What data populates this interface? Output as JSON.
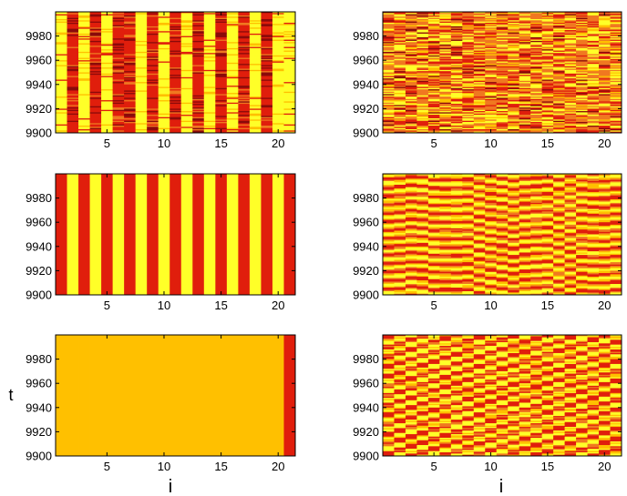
{
  "figure": {
    "xlabel": "i",
    "ylabel": "t"
  },
  "colormap": {
    "dark": "#8a0a0a",
    "red": "#e01e0c",
    "orange": "#f07820",
    "amber": "#ffc000",
    "yellow": "#ffff28"
  },
  "chart_data": [
    {
      "type": "heatmap",
      "panel": "top-left",
      "pattern": "alternating-columns-noisy",
      "x": [
        1,
        2,
        3,
        4,
        5,
        6,
        7,
        8,
        9,
        10,
        11,
        12,
        13,
        14,
        15,
        16,
        17,
        18,
        19,
        20,
        21
      ],
      "xticks": [
        5,
        10,
        15,
        20
      ],
      "xlim": [
        0.5,
        21.5
      ],
      "yticks": [
        9900,
        9920,
        9940,
        9960,
        9980
      ],
      "ylim": [
        9900,
        10000
      ],
      "column_state": [
        "yellow",
        "red",
        "yellow",
        "red",
        "yellow",
        "red",
        "red",
        "yellow",
        "red",
        "yellow",
        "red",
        "yellow",
        "red",
        "yellow",
        "red",
        "yellow",
        "red",
        "yellow",
        "red",
        "yellow",
        "yellow"
      ]
    },
    {
      "type": "heatmap",
      "panel": "top-right",
      "pattern": "noisy-orange",
      "x": [
        1,
        2,
        3,
        4,
        5,
        6,
        7,
        8,
        9,
        10,
        11,
        12,
        13,
        14,
        15,
        16,
        17,
        18,
        19,
        20,
        21
      ],
      "xticks": [
        5,
        10,
        15,
        20
      ],
      "xlim": [
        0.5,
        21.5
      ],
      "yticks": [
        9900,
        9920,
        9940,
        9960,
        9980
      ],
      "ylim": [
        9900,
        10000
      ]
    },
    {
      "type": "heatmap",
      "panel": "middle-left",
      "pattern": "alternating-columns",
      "x": [
        1,
        2,
        3,
        4,
        5,
        6,
        7,
        8,
        9,
        10,
        11,
        12,
        13,
        14,
        15,
        16,
        17,
        18,
        19,
        20,
        21
      ],
      "xticks": [
        5,
        10,
        15,
        20
      ],
      "xlim": [
        0.5,
        21.5
      ],
      "yticks": [
        9900,
        9920,
        9940,
        9960,
        9980
      ],
      "ylim": [
        9900,
        10000
      ],
      "column_state": [
        "red",
        "yellow",
        "red",
        "yellow",
        "red",
        "yellow",
        "red",
        "yellow",
        "red",
        "yellow",
        "red",
        "yellow",
        "red",
        "yellow",
        "red",
        "yellow",
        "red",
        "yellow",
        "red",
        "yellow",
        "red"
      ]
    },
    {
      "type": "heatmap",
      "panel": "middle-right",
      "pattern": "wavy-bands",
      "x": [
        1,
        2,
        3,
        4,
        5,
        6,
        7,
        8,
        9,
        10,
        11,
        12,
        13,
        14,
        15,
        16,
        17,
        18,
        19,
        20,
        21
      ],
      "xticks": [
        5,
        10,
        15,
        20
      ],
      "xlim": [
        0.5,
        21.5
      ],
      "yticks": [
        9900,
        9920,
        9940,
        9960,
        9980
      ],
      "ylim": [
        9900,
        10000
      ]
    },
    {
      "type": "heatmap",
      "panel": "bottom-left",
      "pattern": "uniform",
      "x": [
        1,
        2,
        3,
        4,
        5,
        6,
        7,
        8,
        9,
        10,
        11,
        12,
        13,
        14,
        15,
        16,
        17,
        18,
        19,
        20,
        21
      ],
      "xticks": [
        5,
        10,
        15,
        20
      ],
      "xlim": [
        0.5,
        21.5
      ],
      "yticks": [
        9900,
        9920,
        9940,
        9960,
        9980
      ],
      "ylim": [
        9900,
        10000
      ],
      "xlabel": "i",
      "ylabel": "t",
      "column_state": [
        "amber",
        "amber",
        "amber",
        "amber",
        "amber",
        "amber",
        "amber",
        "amber",
        "amber",
        "amber",
        "amber",
        "amber",
        "amber",
        "amber",
        "amber",
        "amber",
        "amber",
        "amber",
        "amber",
        "amber",
        "red"
      ]
    },
    {
      "type": "heatmap",
      "panel": "bottom-right",
      "pattern": "checkered-noisy",
      "x": [
        1,
        2,
        3,
        4,
        5,
        6,
        7,
        8,
        9,
        10,
        11,
        12,
        13,
        14,
        15,
        16,
        17,
        18,
        19,
        20,
        21
      ],
      "xticks": [
        5,
        10,
        15,
        20
      ],
      "xlim": [
        0.5,
        21.5
      ],
      "yticks": [
        9900,
        9920,
        9940,
        9960,
        9980
      ],
      "ylim": [
        9900,
        10000
      ],
      "xlabel": "i"
    }
  ]
}
